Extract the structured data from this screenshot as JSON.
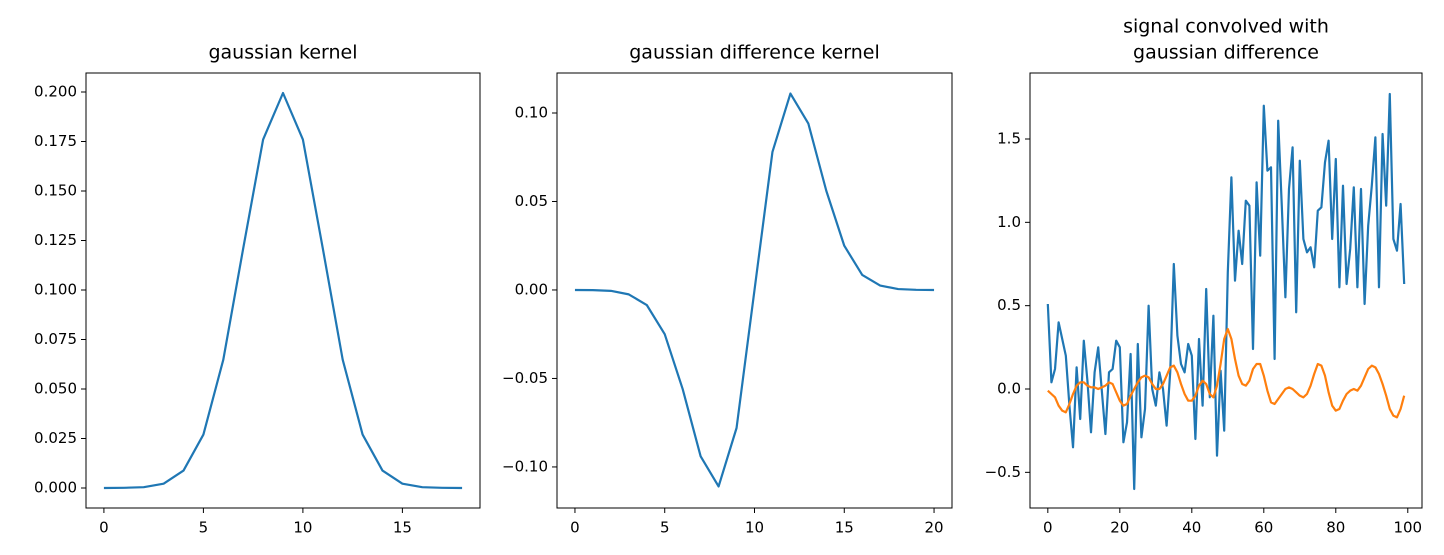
{
  "chart_data": [
    {
      "type": "line",
      "title": [
        "gaussian kernel"
      ],
      "x": [
        0,
        1,
        2,
        3,
        4,
        5,
        6,
        7,
        8,
        9,
        10,
        11,
        12,
        13,
        14,
        15,
        16,
        17,
        18
      ],
      "values": [
        0.0,
        0.0001,
        0.0004,
        0.0022,
        0.0088,
        0.027,
        0.0648,
        0.121,
        0.176,
        0.1995,
        0.176,
        0.121,
        0.0648,
        0.027,
        0.0088,
        0.0022,
        0.0004,
        0.0001,
        0.0
      ],
      "color": "#1f77b4",
      "xlim": [
        -0.9,
        18.9
      ],
      "ylim": [
        -0.0101,
        0.2096
      ],
      "xticks": [
        0,
        5,
        10,
        15
      ],
      "yticks": [
        {
          "value": 0,
          "label": "0.000"
        },
        0.025,
        {
          "value": 0.05,
          "label": "0.050"
        },
        0.075,
        {
          "value": 0.1,
          "label": "0.100"
        },
        0.125,
        {
          "value": 0.15,
          "label": "0.150"
        },
        0.175,
        {
          "value": 0.2,
          "label": "0.200"
        }
      ],
      "grid": false
    },
    {
      "type": "line",
      "title": [
        "gaussian difference kernel"
      ],
      "x": [
        0,
        1,
        2,
        3,
        4,
        5,
        6,
        7,
        8,
        9,
        10,
        11,
        12,
        13,
        14,
        15,
        16,
        17,
        18,
        19,
        20
      ],
      "values": [
        0.0,
        -0.0001,
        -0.0005,
        -0.0025,
        -0.0085,
        -0.025,
        -0.056,
        -0.094,
        -0.111,
        -0.078,
        0.0,
        0.078,
        0.111,
        0.094,
        0.056,
        0.025,
        0.0085,
        0.0025,
        0.0005,
        0.0001,
        0.0
      ],
      "color": "#1f77b4",
      "xlim": [
        -1.0,
        21.0
      ],
      "ylim": [
        -0.1232,
        0.1226
      ],
      "xticks": [
        0,
        5,
        10,
        15,
        20
      ],
      "yticks": [
        {
          "value": -0.1,
          "label": "−0.10"
        },
        {
          "value": -0.05,
          "label": "−0.05"
        },
        {
          "value": 0,
          "label": "0.00"
        },
        0.05,
        {
          "value": 0.1,
          "label": "0.10"
        }
      ],
      "grid": false
    },
    {
      "type": "line",
      "title": [
        "signal convolved with",
        "gaussian difference"
      ],
      "x": [
        0,
        1,
        2,
        3,
        4,
        5,
        6,
        7,
        8,
        9,
        10,
        11,
        12,
        13,
        14,
        15,
        16,
        17,
        18,
        19,
        20,
        21,
        22,
        23,
        24,
        25,
        26,
        27,
        28,
        29,
        30,
        31,
        32,
        33,
        34,
        35,
        36,
        37,
        38,
        39,
        40,
        41,
        42,
        43,
        44,
        45,
        46,
        47,
        48,
        49,
        50,
        51,
        52,
        53,
        54,
        55,
        56,
        57,
        58,
        59,
        60,
        61,
        62,
        63,
        64,
        65,
        66,
        67,
        68,
        69,
        70,
        71,
        72,
        73,
        74,
        75,
        76,
        77,
        78,
        79,
        80,
        81,
        82,
        83,
        84,
        85,
        86,
        87,
        88,
        89,
        90,
        91,
        92,
        93,
        94,
        95,
        96,
        97,
        98,
        99
      ],
      "series": [
        {
          "color": "#1f77b4",
          "values": [
            0.51,
            0.04,
            0.12,
            0.4,
            0.3,
            0.2,
            -0.1,
            -0.35,
            0.13,
            -0.18,
            0.29,
            0.05,
            -0.26,
            0.1,
            0.25,
            -0.01,
            -0.27,
            0.1,
            0.12,
            0.29,
            0.25,
            -0.32,
            -0.2,
            0.21,
            -0.6,
            0.27,
            -0.29,
            -0.12,
            0.5,
            0.0,
            -0.1,
            0.1,
            0.0,
            -0.22,
            0.1,
            0.75,
            0.32,
            0.15,
            0.1,
            0.27,
            0.2,
            -0.3,
            0.3,
            -0.1,
            0.6,
            -0.05,
            0.44,
            -0.4,
            0.11,
            -0.25,
            0.7,
            1.27,
            0.65,
            0.95,
            0.75,
            1.13,
            1.1,
            0.24,
            1.24,
            0.8,
            1.7,
            1.31,
            1.33,
            0.18,
            1.61,
            1.1,
            0.55,
            1.2,
            1.45,
            0.46,
            1.37,
            0.9,
            0.82,
            0.85,
            0.73,
            1.07,
            1.09,
            1.36,
            1.49,
            0.9,
            1.38,
            0.61,
            1.22,
            0.63,
            0.84,
            1.21,
            0.61,
            1.2,
            0.51,
            0.98,
            1.22,
            1.51,
            0.61,
            1.53,
            1.1,
            1.77,
            0.9,
            0.83,
            1.11,
            0.63
          ]
        },
        {
          "color": "#ff7f0e",
          "values": [
            -0.01,
            -0.03,
            -0.05,
            -0.1,
            -0.13,
            -0.14,
            -0.09,
            -0.03,
            0.02,
            0.04,
            0.04,
            0.02,
            0.01,
            0.01,
            0.0,
            0.01,
            0.02,
            0.04,
            0.03,
            -0.02,
            -0.07,
            -0.1,
            -0.09,
            -0.04,
            0.0,
            0.04,
            0.07,
            0.08,
            0.07,
            0.03,
            0.0,
            0.0,
            0.03,
            0.08,
            0.13,
            0.14,
            0.1,
            0.03,
            -0.03,
            -0.07,
            -0.07,
            -0.04,
            0.02,
            0.05,
            0.03,
            -0.03,
            -0.05,
            0.02,
            0.15,
            0.3,
            0.36,
            0.3,
            0.18,
            0.08,
            0.03,
            0.02,
            0.05,
            0.12,
            0.15,
            0.15,
            0.08,
            -0.01,
            -0.08,
            -0.09,
            -0.06,
            -0.03,
            0.0,
            0.01,
            0.0,
            -0.02,
            -0.04,
            -0.05,
            -0.03,
            0.02,
            0.09,
            0.15,
            0.14,
            0.08,
            -0.02,
            -0.1,
            -0.13,
            -0.12,
            -0.07,
            -0.03,
            -0.01,
            0.0,
            -0.01,
            0.02,
            0.07,
            0.12,
            0.14,
            0.13,
            0.09,
            0.03,
            -0.04,
            -0.12,
            -0.16,
            -0.17,
            -0.12,
            -0.04
          ]
        }
      ],
      "xlim": [
        -4.95,
        103.95
      ],
      "ylim": [
        -0.714,
        1.896
      ],
      "xticks": [
        0,
        20,
        40,
        60,
        80,
        100
      ],
      "yticks": [
        {
          "value": -0.5,
          "label": "−0.5"
        },
        {
          "value": 0,
          "label": "0.0"
        },
        0.5,
        {
          "value": 1,
          "label": "1.0"
        },
        1.5
      ],
      "grid": false
    }
  ]
}
